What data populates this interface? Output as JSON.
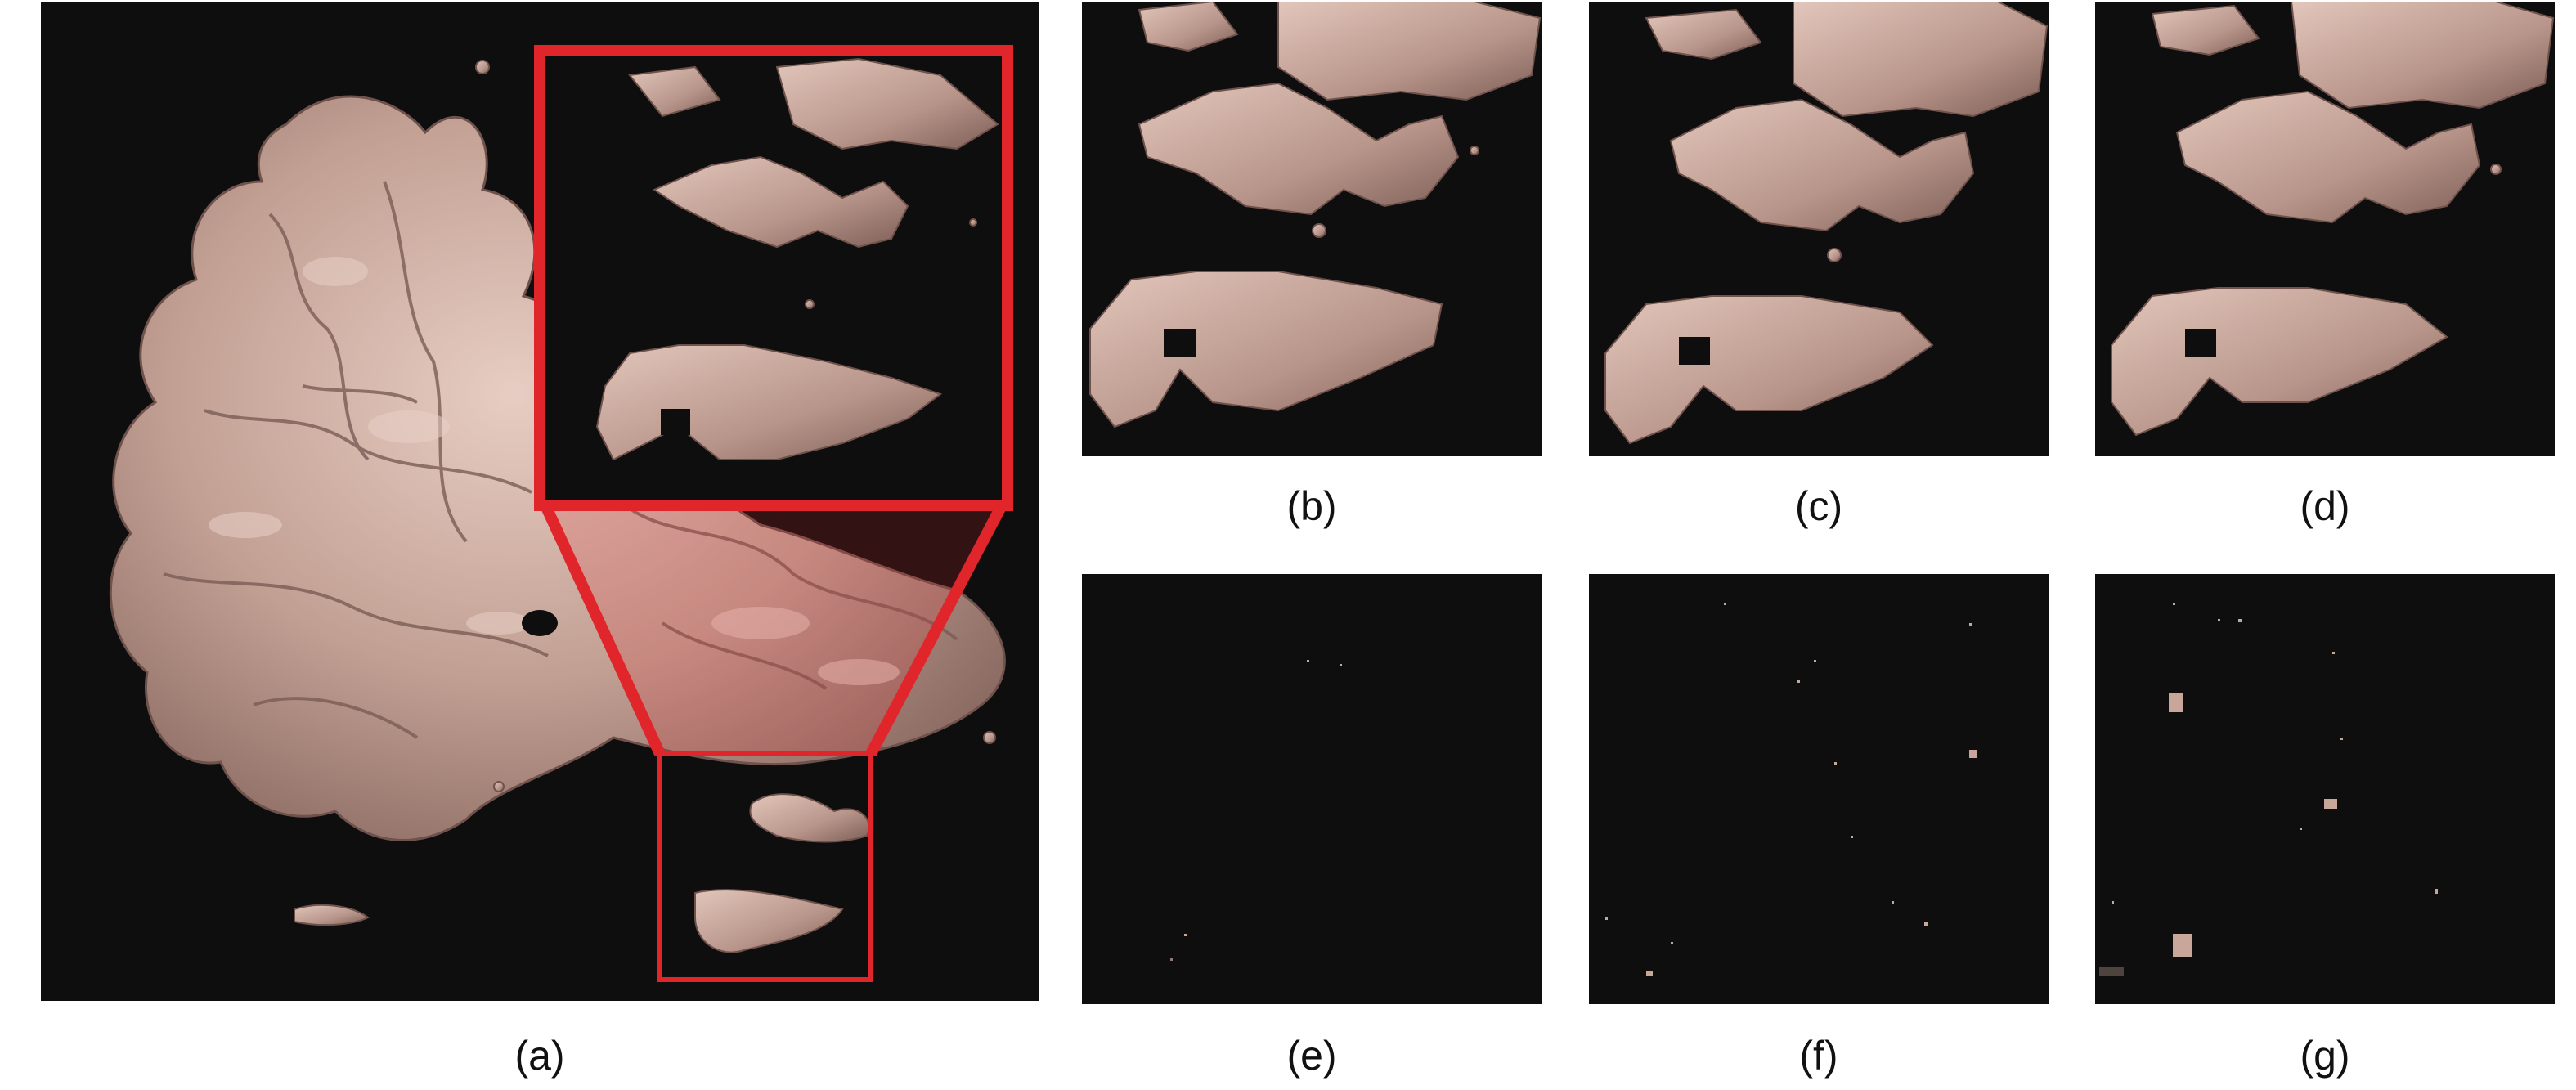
{
  "figure": {
    "panels": [
      {
        "id": "a",
        "caption": "(a)"
      },
      {
        "id": "b",
        "caption": "(b)"
      },
      {
        "id": "c",
        "caption": "(c)"
      },
      {
        "id": "d",
        "caption": "(d)"
      },
      {
        "id": "e",
        "caption": "(e)"
      },
      {
        "id": "f",
        "caption": "(f)"
      },
      {
        "id": "g",
        "caption": "(g)"
      }
    ],
    "colors": {
      "background": "#0e0e0e",
      "surface": "#c9a69a",
      "surface_shadow": "#8d6e66",
      "highlight": "#e5cbc1",
      "zoom_box": "#e0262b"
    }
  }
}
